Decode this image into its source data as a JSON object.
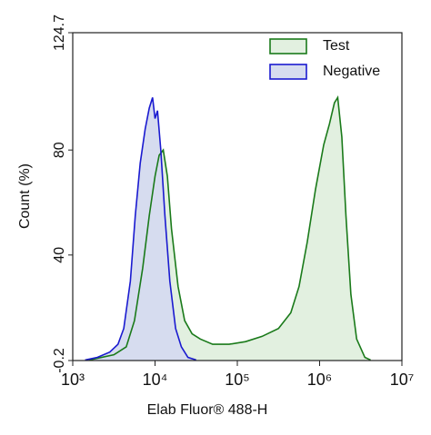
{
  "chart_data": {
    "type": "area",
    "xlabel": "Elab Fluor® 488-H",
    "ylabel": "Count  (%)",
    "xscale": "log",
    "xlim": [
      1000,
      10000000
    ],
    "xticks": [
      {
        "value": 1000,
        "label": "10³"
      },
      {
        "value": 10000,
        "label": "10⁴"
      },
      {
        "value": 100000,
        "label": "10⁵"
      },
      {
        "value": 1000000,
        "label": "10⁶"
      },
      {
        "value": 10000000,
        "label": "10⁷"
      }
    ],
    "ylim": [
      -0.2,
      124.7
    ],
    "yticks": [
      -0.2,
      40,
      80,
      124.7
    ],
    "legend": "upper right",
    "series": [
      {
        "name": "Test",
        "color": "#1a7a1a",
        "fill": "#e2f0e0",
        "x": [
          1585,
          3162,
          4467,
          5623,
          7079,
          8511,
          10000,
          11220,
          12589,
          14125,
          15849,
          19055,
          22909,
          28184,
          35481,
          50119,
          79433,
          125893,
          199526,
          316228,
          446684,
          562341,
          707946,
          891251,
          1122018,
          1318257,
          1513561,
          1659587,
          1862087,
          2089296,
          2398833,
          2818383,
          3548134,
          4168694
        ],
        "values": [
          0,
          2,
          5,
          15,
          35,
          55,
          70,
          78,
          80,
          70,
          50,
          28,
          15,
          10,
          8,
          6,
          6,
          7,
          9,
          12,
          18,
          28,
          45,
          65,
          82,
          90,
          98,
          100,
          85,
          55,
          25,
          8,
          1,
          0
        ]
      },
      {
        "name": "Negative",
        "color": "#1a1ad0",
        "fill": "#d6dcef",
        "x": [
          1413,
          1995,
          2818,
          3548,
          4169,
          5012,
          5754,
          6607,
          7586,
          8511,
          9333,
          10000,
          10715,
          11749,
          13183,
          15136,
          17783,
          20893,
          25119,
          31623
        ],
        "values": [
          0,
          1,
          3,
          6,
          12,
          30,
          55,
          75,
          88,
          96,
          100,
          92,
          95,
          80,
          55,
          30,
          12,
          5,
          1,
          0
        ]
      }
    ]
  }
}
